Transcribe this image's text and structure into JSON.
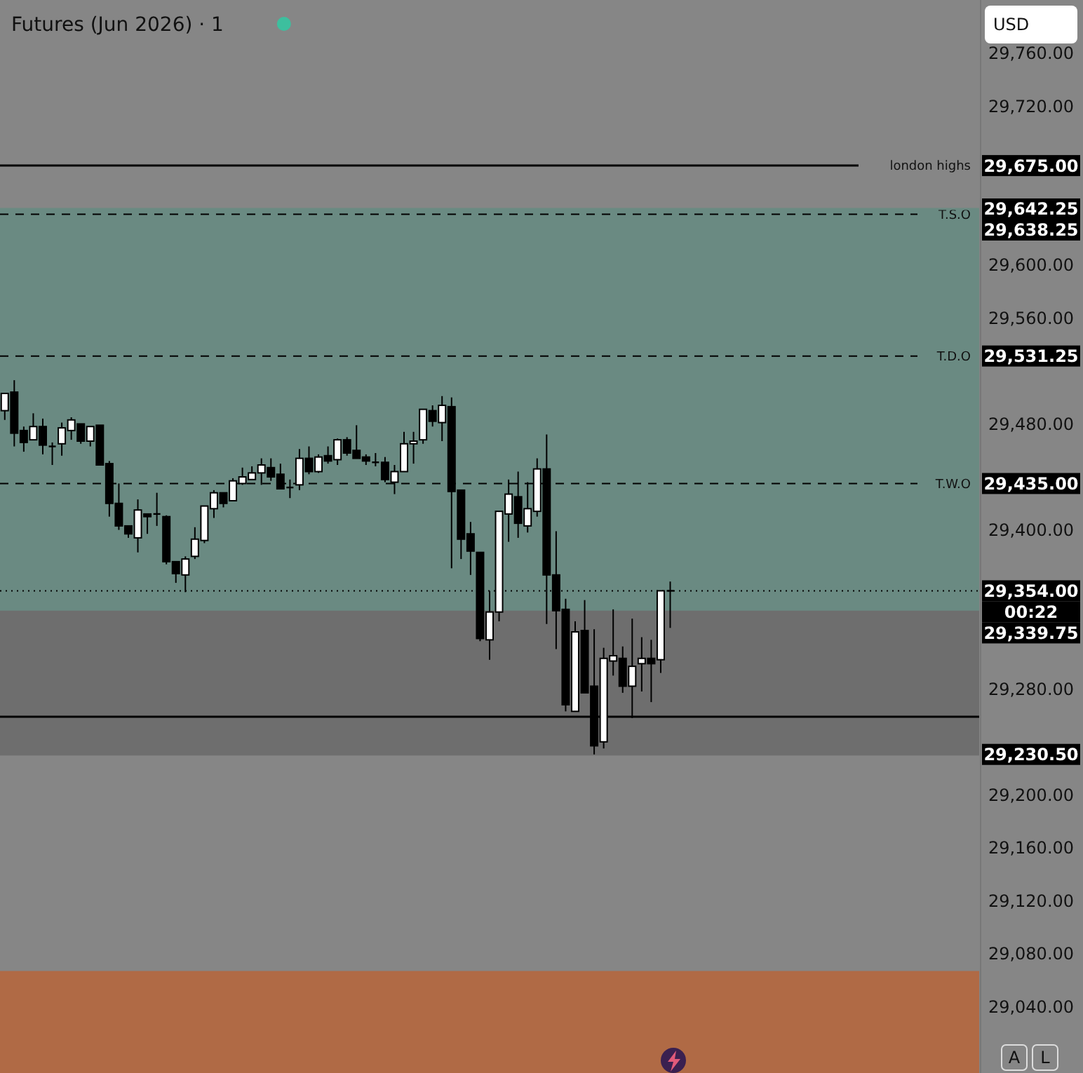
{
  "chart_data": {
    "type": "candlestick",
    "title": "Futures (Jun 2026) · 1",
    "categories": [
      null,
      null,
      null,
      null,
      null,
      null,
      null,
      null,
      null,
      null,
      null,
      null,
      null,
      null,
      null,
      null,
      null,
      null,
      null,
      null,
      null,
      null,
      null,
      null,
      null,
      null,
      null,
      null,
      null,
      null,
      null,
      null,
      null,
      null,
      null,
      null,
      null,
      null,
      null,
      null,
      null,
      null,
      null,
      null,
      null,
      null,
      null,
      null,
      null,
      null,
      null,
      null,
      null,
      null,
      null,
      null,
      null,
      null,
      null,
      null,
      null,
      null,
      null,
      null,
      null,
      null,
      null,
      null,
      null,
      null,
      null,
      null,
      null,
      null,
      null,
      null,
      null,
      null,
      null,
      null,
      null,
      null,
      null,
      null,
      null,
      null,
      null,
      null,
      null,
      null,
      null,
      null,
      null,
      null,
      null,
      null,
      null,
      null,
      null,
      null,
      null,
      null,
      null
    ],
    "ohlc": [
      [
        29490,
        29503,
        29483,
        29503
      ],
      [
        29504,
        29513,
        29463,
        29473
      ],
      [
        29475,
        29478,
        29459,
        29466
      ],
      [
        29468,
        29488,
        29468,
        29478
      ],
      [
        29478,
        29484,
        29457,
        29464
      ],
      [
        29463,
        29466,
        29449,
        29463
      ],
      [
        29465,
        29481,
        29456,
        29477
      ],
      [
        29475,
        29485,
        29468,
        29483
      ],
      [
        29480,
        29480,
        29465,
        29467
      ],
      [
        29467,
        29478,
        29463,
        29478
      ],
      [
        29479,
        29479,
        29449,
        29449
      ],
      [
        29450,
        29452,
        29410,
        29420
      ],
      [
        29420,
        29435,
        29400,
        29403
      ],
      [
        29403,
        29403,
        29394,
        29397
      ],
      [
        29394,
        29423,
        29383,
        29415
      ],
      [
        29412,
        29412,
        29397,
        29410
      ],
      [
        29412,
        29428,
        29403,
        29412
      ],
      [
        29410,
        29411,
        29374,
        29376
      ],
      [
        29376,
        29376,
        29360,
        29367
      ],
      [
        29366,
        29380,
        29353,
        29378
      ],
      [
        29380,
        29402,
        29378,
        29393
      ],
      [
        29392,
        29418,
        29390,
        29418
      ],
      [
        29416,
        29430,
        29409,
        29428
      ],
      [
        29428,
        29428,
        29417,
        29420
      ],
      [
        29422,
        29439,
        29422,
        29437
      ],
      [
        29435,
        29447,
        29434,
        29440
      ],
      [
        29438,
        29448,
        29438,
        29443
      ],
      [
        29443,
        29454,
        29434,
        29449
      ],
      [
        29447,
        29454,
        29437,
        29440
      ],
      [
        29442,
        29450,
        29431,
        29431
      ],
      [
        29432,
        29438,
        29424,
        29432
      ],
      [
        29434,
        29461,
        29430,
        29454
      ],
      [
        29454,
        29463,
        29442,
        29444
      ],
      [
        29444,
        29457,
        29443,
        29455
      ],
      [
        29456,
        29463,
        29450,
        29452
      ],
      [
        29453,
        29469,
        29449,
        29468
      ],
      [
        29468,
        29470,
        29456,
        29458
      ],
      [
        29460,
        29479,
        29454,
        29454
      ],
      [
        29455,
        29457,
        29449,
        29452
      ],
      [
        29451,
        29458,
        29448,
        29451
      ],
      [
        29451,
        29455,
        29436,
        29438
      ],
      [
        29436,
        29449,
        29427,
        29444
      ],
      [
        29444,
        29474,
        29444,
        29465
      ],
      [
        29465,
        29474,
        29450,
        29467
      ],
      [
        29468,
        29491,
        29465,
        29491
      ],
      [
        29490,
        29494,
        29478,
        29482
      ],
      [
        29481,
        29501,
        29467,
        29494
      ],
      [
        29493,
        29500,
        29371,
        29429
      ],
      [
        29430,
        29430,
        29378,
        29393
      ],
      [
        29397,
        29406,
        29366,
        29384
      ],
      [
        29383,
        29383,
        29316,
        29318
      ],
      [
        29317,
        29354,
        29302,
        29338
      ],
      [
        29338,
        29414,
        29331,
        29414
      ],
      [
        29412,
        29438,
        29391,
        29427
      ],
      [
        29425,
        29444,
        29394,
        29405
      ],
      [
        29403,
        29436,
        29398,
        29416
      ],
      [
        29414,
        29454,
        29410,
        29446
      ],
      [
        29446,
        29472,
        29329,
        29366
      ],
      [
        29366,
        29399,
        29310,
        29339
      ],
      [
        29340,
        29348,
        29263,
        29268
      ],
      [
        29263,
        29331,
        29263,
        29323
      ],
      [
        29324,
        29347,
        29277,
        29277
      ],
      [
        29282,
        29325,
        29230.5,
        29237
      ],
      [
        29240,
        29311,
        29235,
        29303
      ],
      [
        29301,
        29340,
        29290,
        29305
      ],
      [
        29303,
        29312,
        29277,
        29282
      ],
      [
        29282,
        29333,
        29258,
        29297
      ],
      [
        29299,
        29319,
        29278,
        29303
      ],
      [
        29303,
        29317,
        29270,
        29299
      ],
      [
        29302,
        29354,
        29292,
        29354
      ],
      [
        29354,
        29361,
        29326,
        29354
      ],
      null,
      null,
      null,
      null,
      null,
      null,
      null,
      null,
      null,
      null,
      null,
      null,
      null,
      null,
      null,
      null,
      null,
      null,
      null,
      null,
      null,
      null,
      null,
      null,
      null,
      null,
      null,
      null,
      null,
      null,
      null,
      null
    ],
    "ylim": [
      28990,
      29800
    ],
    "yticks": [
      {
        "value": 29040,
        "label": "29,040.00"
      },
      {
        "value": 29080,
        "label": "29,080.00"
      },
      {
        "value": 29120,
        "label": "29,120.00"
      },
      {
        "value": 29160,
        "label": "29,160.00"
      },
      {
        "value": 29200,
        "label": "29,200.00"
      },
      {
        "value": 29280,
        "label": "29,280.00"
      },
      {
        "value": 29400,
        "label": "29,400.00"
      },
      {
        "value": 29480,
        "label": "29,480.00"
      },
      {
        "value": 29560,
        "label": "29,560.00"
      },
      {
        "value": 29600,
        "label": "29,600.00"
      },
      {
        "value": 29720,
        "label": "29,720.00"
      },
      {
        "value": 29760,
        "label": "29,760.00"
      }
    ],
    "tick_labels": "y",
    "grid": false,
    "ref_lines": [
      {
        "axis": "y",
        "value": 29675,
        "label": "london highs",
        "color": "#000000",
        "line_style": "solid"
      },
      {
        "axis": "y",
        "value": 29638.25,
        "label": "T.S.O",
        "color": "#000000",
        "line_style": "dashed"
      },
      {
        "axis": "y",
        "value": 29531.25,
        "label": "T.D.O",
        "color": "#000000",
        "line_style": "dashed"
      },
      {
        "axis": "y",
        "value": 29435,
        "label": "T.W.O",
        "color": "#000000",
        "line_style": "dashed"
      },
      {
        "axis": "y",
        "value": 29354,
        "color": "#000000",
        "line_style": "dotted"
      },
      {
        "axis": "y",
        "value": 29259,
        "color": "#000000",
        "line_style": "solid"
      },
      {
        "axis": "y",
        "value": 29642.25,
        "color": "#6a8a82",
        "line_style": "solid"
      },
      {
        "axis": "y",
        "value": 29339.75,
        "color": "#6a8a82",
        "line_style": "solid"
      },
      {
        "axis": "y",
        "value": 29230.5,
        "color": "#6e6e6e",
        "line_style": "solid"
      }
    ],
    "bands": [
      {
        "axis": "y",
        "from": 28990,
        "to": 29067,
        "color": "#b06a45"
      },
      {
        "axis": "y",
        "from": 29339.75,
        "to": 29642.25,
        "color": "#6a8a82"
      },
      {
        "axis": "y",
        "from": 29230.5,
        "to": 29339.75,
        "color": "#6e6e6e"
      }
    ],
    "annotations": [
      "29,675.00",
      "29,638.25",
      "29,531.25",
      "29,435.00",
      "29,354.00",
      "29,642.25",
      "29,339.75",
      "29,230.50",
      "00:22",
      "USD",
      "A",
      "L"
    ]
  }
}
